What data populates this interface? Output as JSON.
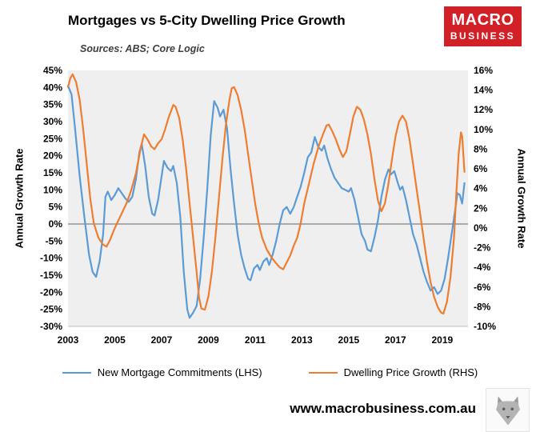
{
  "header": {
    "title": "Mortgages vs 5-City Dwelling Price Growth",
    "subtitle": "Sources: ABS; Core Logic",
    "logo": {
      "line1": "MACRO",
      "line2": "BUSINESS",
      "bg": "#d22027"
    }
  },
  "footer": {
    "url": "www.macrobusiness.com.au"
  },
  "chart_data": {
    "type": "line",
    "title": "Mortgages vs 5-City Dwelling Price Growth",
    "subtitle": "Sources: ABS; Core Logic",
    "plot_bg": "#efefef",
    "zero_line_color": "#7f7f7f",
    "axis_line_color": "#bfbfbf",
    "x_axis": {
      "min": 2003,
      "max": 2020.1,
      "ticks": [
        2003,
        2005,
        2007,
        2009,
        2011,
        2013,
        2015,
        2017,
        2019
      ]
    },
    "y_left": {
      "label": "Annual Growth Rate",
      "min": -30,
      "max": 45,
      "step": 5,
      "suffix": "%"
    },
    "y_right": {
      "label": "Annual Growth Rate",
      "min": -10,
      "max": 16,
      "step": 2,
      "suffix": "%"
    },
    "legend_position": "bottom",
    "series": [
      {
        "name": "New Mortgage Commitments (LHS)",
        "axis": "left",
        "color": "#5B9BD5",
        "points": [
          [
            2003.0,
            40.5
          ],
          [
            2003.15,
            38
          ],
          [
            2003.3,
            28
          ],
          [
            2003.5,
            14
          ],
          [
            2003.7,
            2
          ],
          [
            2003.9,
            -9
          ],
          [
            2004.05,
            -14
          ],
          [
            2004.2,
            -15.5
          ],
          [
            2004.35,
            -11
          ],
          [
            2004.5,
            -3
          ],
          [
            2004.6,
            8
          ],
          [
            2004.7,
            9.5
          ],
          [
            2004.85,
            7
          ],
          [
            2005.0,
            8.5
          ],
          [
            2005.15,
            10.5
          ],
          [
            2005.3,
            9
          ],
          [
            2005.45,
            7.5
          ],
          [
            2005.6,
            6.5
          ],
          [
            2005.75,
            8
          ],
          [
            2005.9,
            13
          ],
          [
            2006.05,
            21
          ],
          [
            2006.15,
            23.5
          ],
          [
            2006.3,
            17
          ],
          [
            2006.45,
            8
          ],
          [
            2006.6,
            3
          ],
          [
            2006.7,
            2.5
          ],
          [
            2006.85,
            7
          ],
          [
            2007.0,
            14
          ],
          [
            2007.1,
            18.5
          ],
          [
            2007.25,
            16.5
          ],
          [
            2007.4,
            15.5
          ],
          [
            2007.5,
            17
          ],
          [
            2007.65,
            12
          ],
          [
            2007.8,
            2
          ],
          [
            2007.95,
            -14
          ],
          [
            2008.1,
            -25
          ],
          [
            2008.2,
            -27.5
          ],
          [
            2008.35,
            -26
          ],
          [
            2008.5,
            -24
          ],
          [
            2008.65,
            -16
          ],
          [
            2008.8,
            -4
          ],
          [
            2008.95,
            10
          ],
          [
            2009.1,
            26
          ],
          [
            2009.25,
            36
          ],
          [
            2009.4,
            34
          ],
          [
            2009.5,
            31.5
          ],
          [
            2009.65,
            33.5
          ],
          [
            2009.8,
            28
          ],
          [
            2009.95,
            16
          ],
          [
            2010.1,
            6
          ],
          [
            2010.25,
            -3
          ],
          [
            2010.4,
            -9
          ],
          [
            2010.55,
            -13
          ],
          [
            2010.7,
            -16
          ],
          [
            2010.8,
            -16.5
          ],
          [
            2010.95,
            -13
          ],
          [
            2011.1,
            -12
          ],
          [
            2011.2,
            -13.5
          ],
          [
            2011.35,
            -11
          ],
          [
            2011.5,
            -10
          ],
          [
            2011.6,
            -12
          ],
          [
            2011.75,
            -9
          ],
          [
            2011.9,
            -5
          ],
          [
            2012.05,
            0
          ],
          [
            2012.2,
            4
          ],
          [
            2012.35,
            5
          ],
          [
            2012.5,
            3
          ],
          [
            2012.65,
            5
          ],
          [
            2012.8,
            8
          ],
          [
            2012.95,
            11
          ],
          [
            2013.1,
            15
          ],
          [
            2013.25,
            19.5
          ],
          [
            2013.4,
            21
          ],
          [
            2013.55,
            25.5
          ],
          [
            2013.7,
            22.5
          ],
          [
            2013.85,
            21.5
          ],
          [
            2013.95,
            23
          ],
          [
            2014.1,
            19
          ],
          [
            2014.25,
            16
          ],
          [
            2014.4,
            13.5
          ],
          [
            2014.55,
            12
          ],
          [
            2014.7,
            10.5
          ],
          [
            2014.85,
            10
          ],
          [
            2015.0,
            9.5
          ],
          [
            2015.1,
            10.5
          ],
          [
            2015.25,
            7
          ],
          [
            2015.4,
            2
          ],
          [
            2015.55,
            -3
          ],
          [
            2015.7,
            -5
          ],
          [
            2015.8,
            -7.5
          ],
          [
            2015.95,
            -8
          ],
          [
            2016.1,
            -4
          ],
          [
            2016.25,
            1
          ],
          [
            2016.4,
            8
          ],
          [
            2016.55,
            13
          ],
          [
            2016.7,
            16
          ],
          [
            2016.8,
            14.5
          ],
          [
            2016.95,
            15.5
          ],
          [
            2017.1,
            12
          ],
          [
            2017.2,
            10
          ],
          [
            2017.3,
            11
          ],
          [
            2017.45,
            7
          ],
          [
            2017.6,
            2
          ],
          [
            2017.75,
            -3
          ],
          [
            2017.9,
            -6
          ],
          [
            2018.05,
            -10
          ],
          [
            2018.2,
            -14
          ],
          [
            2018.35,
            -17
          ],
          [
            2018.5,
            -19.5
          ],
          [
            2018.65,
            -18.5
          ],
          [
            2018.8,
            -20.5
          ],
          [
            2018.95,
            -19.5
          ],
          [
            2019.1,
            -16
          ],
          [
            2019.25,
            -10
          ],
          [
            2019.4,
            -3
          ],
          [
            2019.55,
            4
          ],
          [
            2019.65,
            9
          ],
          [
            2019.75,
            8.5
          ],
          [
            2019.85,
            6
          ],
          [
            2019.95,
            12
          ]
        ]
      },
      {
        "name": "Dwelling Price Growth (RHS)",
        "axis": "right",
        "color": "#ED7D31",
        "points": [
          [
            2003.0,
            14.3
          ],
          [
            2003.1,
            15.2
          ],
          [
            2003.2,
            15.6
          ],
          [
            2003.35,
            14.8
          ],
          [
            2003.5,
            13
          ],
          [
            2003.65,
            10
          ],
          [
            2003.8,
            6.5
          ],
          [
            2003.95,
            3
          ],
          [
            2004.1,
            0.5
          ],
          [
            2004.3,
            -1
          ],
          [
            2004.5,
            -1.7
          ],
          [
            2004.65,
            -1.9
          ],
          [
            2004.8,
            -1.2
          ],
          [
            2004.95,
            -0.3
          ],
          [
            2005.1,
            0.5
          ],
          [
            2005.3,
            1.5
          ],
          [
            2005.5,
            2.5
          ],
          [
            2005.7,
            3.8
          ],
          [
            2005.9,
            5.5
          ],
          [
            2006.1,
            8
          ],
          [
            2006.25,
            9.5
          ],
          [
            2006.4,
            9
          ],
          [
            2006.55,
            8.3
          ],
          [
            2006.7,
            8
          ],
          [
            2006.85,
            8.6
          ],
          [
            2007.0,
            9
          ],
          [
            2007.15,
            10
          ],
          [
            2007.3,
            11.2
          ],
          [
            2007.5,
            12.5
          ],
          [
            2007.6,
            12.3
          ],
          [
            2007.75,
            11.2
          ],
          [
            2007.9,
            9
          ],
          [
            2008.05,
            6
          ],
          [
            2008.2,
            2.5
          ],
          [
            2008.35,
            -1
          ],
          [
            2008.5,
            -4.5
          ],
          [
            2008.6,
            -7
          ],
          [
            2008.7,
            -8.2
          ],
          [
            2008.85,
            -8.3
          ],
          [
            2009.0,
            -7
          ],
          [
            2009.15,
            -4.5
          ],
          [
            2009.3,
            -1
          ],
          [
            2009.45,
            3
          ],
          [
            2009.6,
            7
          ],
          [
            2009.75,
            10.5
          ],
          [
            2009.9,
            13
          ],
          [
            2010.0,
            14.2
          ],
          [
            2010.1,
            14.3
          ],
          [
            2010.25,
            13.5
          ],
          [
            2010.4,
            12
          ],
          [
            2010.55,
            10
          ],
          [
            2010.7,
            7.5
          ],
          [
            2010.85,
            5
          ],
          [
            2011.0,
            2.5
          ],
          [
            2011.15,
            0.5
          ],
          [
            2011.3,
            -1
          ],
          [
            2011.5,
            -2.2
          ],
          [
            2011.7,
            -3
          ],
          [
            2011.9,
            -3.6
          ],
          [
            2012.05,
            -4
          ],
          [
            2012.2,
            -4.2
          ],
          [
            2012.35,
            -3.5
          ],
          [
            2012.5,
            -2.8
          ],
          [
            2012.65,
            -1.8
          ],
          [
            2012.8,
            -1
          ],
          [
            2012.95,
            0.5
          ],
          [
            2013.1,
            2.5
          ],
          [
            2013.3,
            4.5
          ],
          [
            2013.5,
            6.5
          ],
          [
            2013.7,
            8.2
          ],
          [
            2013.9,
            9.5
          ],
          [
            2014.05,
            10.4
          ],
          [
            2014.15,
            10.5
          ],
          [
            2014.3,
            9.8
          ],
          [
            2014.45,
            9
          ],
          [
            2014.6,
            8
          ],
          [
            2014.75,
            7.2
          ],
          [
            2014.9,
            7.8
          ],
          [
            2015.05,
            9.5
          ],
          [
            2015.2,
            11.3
          ],
          [
            2015.35,
            12.3
          ],
          [
            2015.5,
            12
          ],
          [
            2015.65,
            11
          ],
          [
            2015.8,
            9.5
          ],
          [
            2015.95,
            7.5
          ],
          [
            2016.1,
            5
          ],
          [
            2016.25,
            2.8
          ],
          [
            2016.4,
            1.7
          ],
          [
            2016.55,
            2.5
          ],
          [
            2016.7,
            4.5
          ],
          [
            2016.85,
            7
          ],
          [
            2017.0,
            9.3
          ],
          [
            2017.15,
            10.8
          ],
          [
            2017.3,
            11.4
          ],
          [
            2017.45,
            10.8
          ],
          [
            2017.6,
            9
          ],
          [
            2017.75,
            6.5
          ],
          [
            2017.9,
            4
          ],
          [
            2018.05,
            1.5
          ],
          [
            2018.2,
            -1
          ],
          [
            2018.35,
            -3.5
          ],
          [
            2018.5,
            -5.5
          ],
          [
            2018.65,
            -7
          ],
          [
            2018.8,
            -8
          ],
          [
            2018.95,
            -8.6
          ],
          [
            2019.05,
            -8.7
          ],
          [
            2019.2,
            -7.5
          ],
          [
            2019.35,
            -5
          ],
          [
            2019.5,
            -1
          ],
          [
            2019.6,
            3.5
          ],
          [
            2019.7,
            7.5
          ],
          [
            2019.8,
            9.7
          ],
          [
            2019.85,
            9.3
          ],
          [
            2019.95,
            5.7
          ]
        ]
      }
    ]
  }
}
